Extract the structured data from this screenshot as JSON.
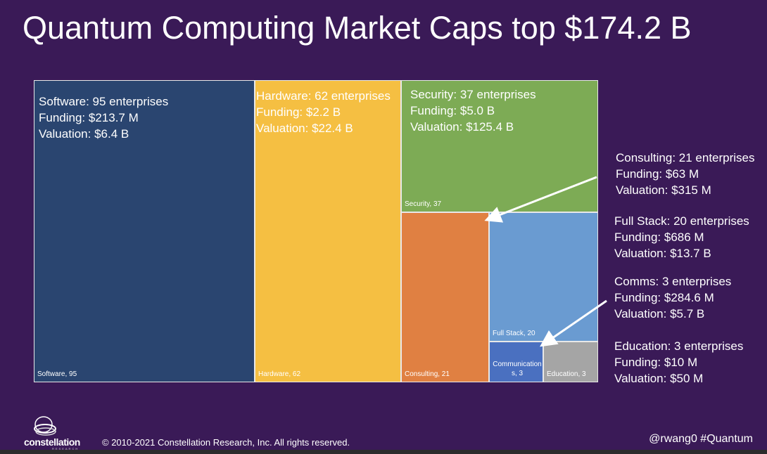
{
  "title": "Quantum Computing Market Caps top $174.2 B",
  "chart_data": {
    "type": "treemap",
    "title": "Quantum Computing Market Caps top $174.2 B",
    "items": [
      {
        "key": "software",
        "label": "Software, 95",
        "name": "Software",
        "value": 95,
        "color": "#2a4570",
        "info": [
          "Software: 95 enterprises",
          "Funding: $213.7 M",
          "Valuation: $6.4 B"
        ]
      },
      {
        "key": "hardware",
        "label": "Hardware, 62",
        "name": "Hardware",
        "value": 62,
        "color": "#f5bf42",
        "info": [
          "Hardware: 62 enterprises",
          "Funding: $2.2 B",
          "Valuation: $22.4 B"
        ]
      },
      {
        "key": "security",
        "label": "Security, 37",
        "name": "Security",
        "value": 37,
        "color": "#7dab55",
        "info": [
          "Security: 37 enterprises",
          "Funding: $5.0 B",
          "Valuation: $125.4 B"
        ]
      },
      {
        "key": "consulting",
        "label": "Consulting, 21",
        "name": "Consulting",
        "value": 21,
        "color": "#e08042",
        "info": [
          "Consulting: 21 enterprises",
          "Funding: $63 M",
          "Valuation: $315 M"
        ]
      },
      {
        "key": "fullstack",
        "label": "Full Stack, 20",
        "name": "Full Stack",
        "value": 20,
        "color": "#6a9bd1",
        "info": [
          "Full Stack: 20 enterprises",
          "Funding: $686 M",
          "Valuation: $13.7 B"
        ]
      },
      {
        "key": "comms",
        "label": "Communications, 3",
        "name": "Communications",
        "value": 3,
        "color": "#4a70c0",
        "info": [
          "Comms: 3 enterprises",
          "Funding: $284.6 M",
          "Valuation: $5.7 B"
        ]
      },
      {
        "key": "education",
        "label": "Education, 3",
        "name": "Education",
        "value": 3,
        "color": "#a5a5a5",
        "info": [
          "Education: 3 enterprises",
          "Funding: $10 M",
          "Valuation: $50 M"
        ]
      }
    ]
  },
  "footer": {
    "logo_text": "constellation",
    "logo_sub": "RESEARCH",
    "copyright": "© 2010-2021 Constellation Research, Inc. All rights reserved.",
    "handle": "@rwang0 #Quantum"
  },
  "colors": {
    "background": "#3a1a57"
  }
}
